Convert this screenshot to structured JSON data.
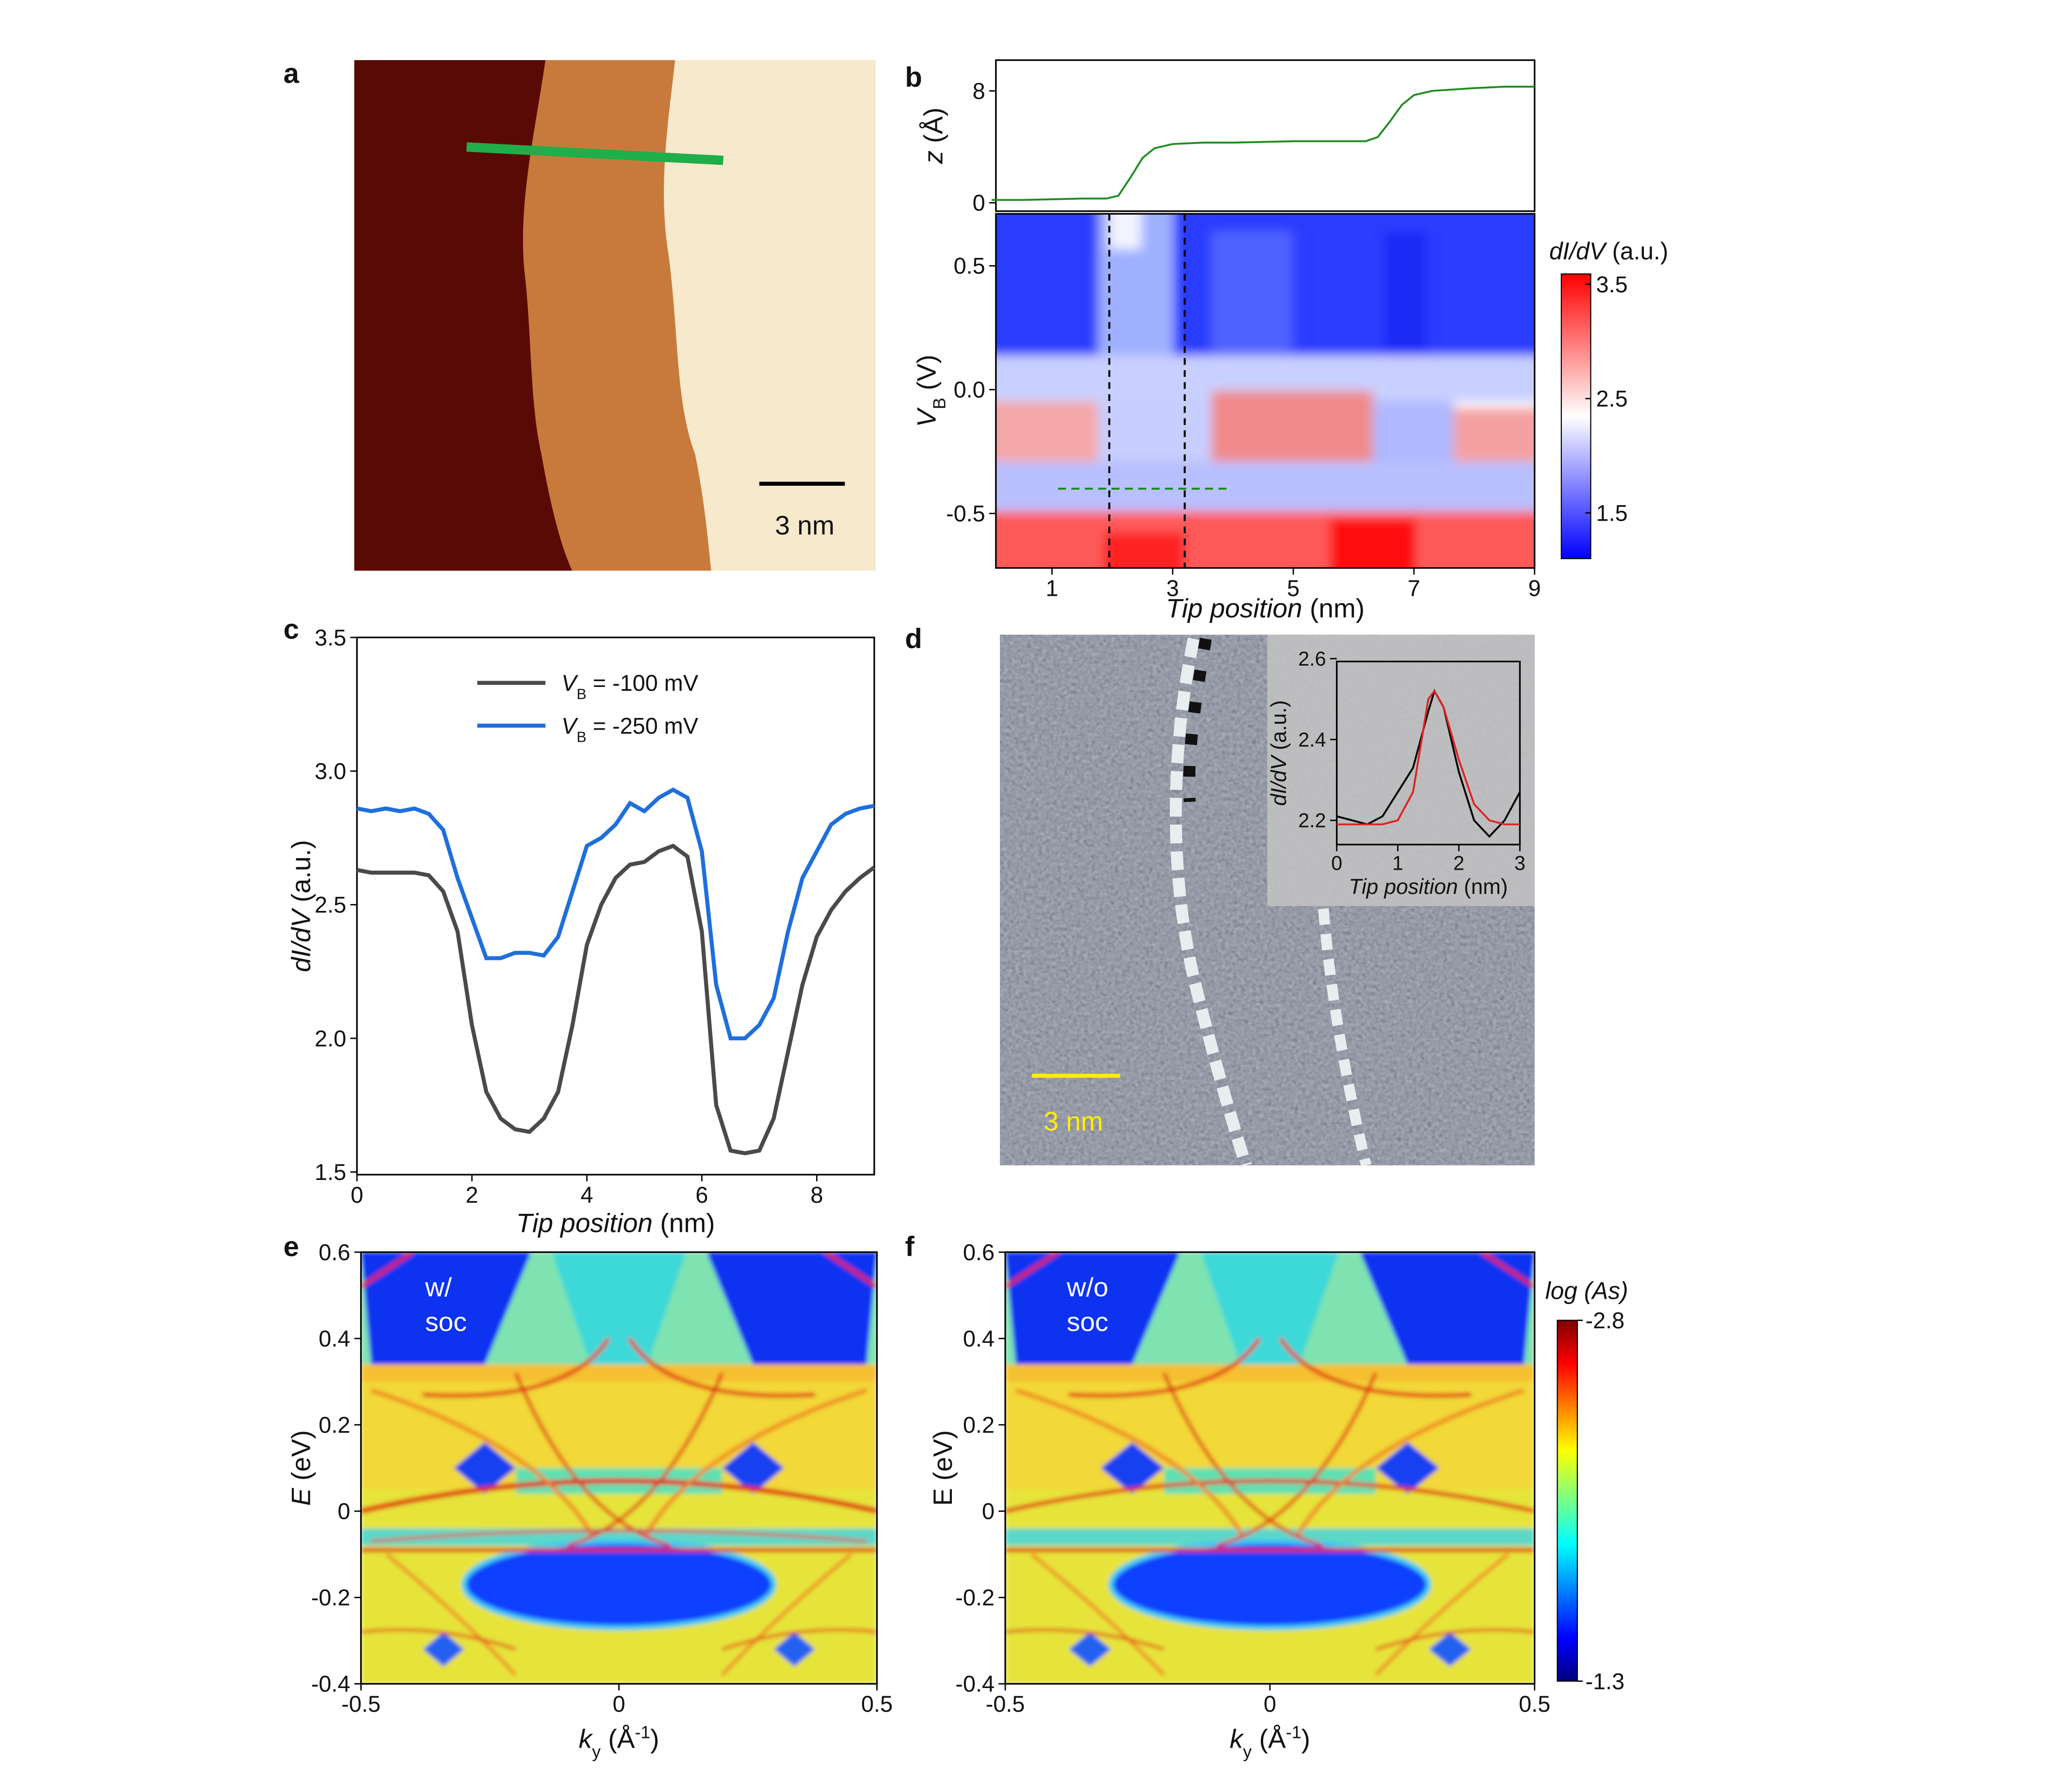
{
  "panel_labels": [
    "a",
    "b",
    "c",
    "d",
    "e",
    "f"
  ],
  "a": {
    "scale_bar": "3 nm"
  },
  "b": {
    "profile": {
      "type": "line",
      "y_label": {
        "italic": "z",
        "text": " (Å)"
      },
      "x": [
        0,
        0.5,
        1,
        1.5,
        1.9,
        2.1,
        2.3,
        2.5,
        2.7,
        3,
        3.5,
        4,
        5,
        6,
        6.2,
        6.4,
        6.6,
        6.8,
        7,
        7.3,
        8,
        8.5,
        9
      ],
      "values": [
        0.2,
        0.2,
        0.25,
        0.3,
        0.3,
        0.5,
        1.8,
        3.2,
        3.9,
        4.2,
        4.3,
        4.3,
        4.4,
        4.4,
        4.4,
        4.7,
        5.8,
        7.0,
        7.7,
        8.0,
        8.2,
        8.3,
        8.3
      ],
      "color": "#1e8c1e",
      "xlim": [
        0.07,
        9
      ],
      "ylim": [
        -0.6,
        10.2
      ],
      "yticks": [
        0,
        8
      ]
    },
    "map": {
      "type": "heatmap",
      "x_label": {
        "italic": "Tip position",
        "text": " (nm)"
      },
      "y_label": {
        "italic": "V",
        "sub": "B",
        "text": " (V)"
      },
      "xlim": [
        0.07,
        9
      ],
      "ylim": [
        -0.72,
        0.71
      ],
      "xticks": [
        1,
        3,
        5,
        7,
        9
      ],
      "yticks": [
        -0.5,
        {
          "value": 0,
          "label": "0.0"
        },
        0.5
      ],
      "vlines": [
        1.95,
        3.2
      ],
      "hline": {
        "y": -0.4,
        "x": [
          1.1,
          3.9
        ]
      },
      "colorbar": {
        "title": {
          "italic": "dI/dV",
          "text": " (a.u.)"
        },
        "clim": [
          1.1,
          3.59
        ],
        "ticks": [
          1.5,
          2.5,
          3.5
        ]
      }
    }
  },
  "c": {
    "type": "line",
    "x_label": {
      "italic": "Tip position",
      "text": " (nm)"
    },
    "y_label": {
      "italic": "dI/dV",
      "text": " (a.u.)"
    },
    "x": [
      0,
      0.25,
      0.5,
      0.75,
      1,
      1.25,
      1.5,
      1.75,
      2,
      2.25,
      2.5,
      2.75,
      3,
      3.25,
      3.5,
      3.75,
      4,
      4.25,
      4.5,
      4.75,
      5,
      5.25,
      5.5,
      5.75,
      6,
      6.25,
      6.5,
      6.75,
      7,
      7.25,
      7.5,
      7.75,
      8,
      8.25,
      8.5,
      8.75,
      9
    ],
    "series": [
      {
        "name": {
          "italic": "V",
          "sub": "B",
          "text": " = -100 mV"
        },
        "color": "#4a4a4a",
        "values": [
          2.63,
          2.62,
          2.62,
          2.62,
          2.62,
          2.61,
          2.55,
          2.4,
          2.05,
          1.8,
          1.7,
          1.66,
          1.65,
          1.7,
          1.8,
          2.05,
          2.35,
          2.5,
          2.6,
          2.65,
          2.66,
          2.7,
          2.72,
          2.68,
          2.4,
          1.75,
          1.58,
          1.57,
          1.58,
          1.7,
          1.95,
          2.2,
          2.38,
          2.48,
          2.55,
          2.6,
          2.64
        ]
      },
      {
        "name": {
          "italic": "V",
          "sub": "B",
          "text": " = -250 mV"
        },
        "color": "#1f6fdc",
        "values": [
          2.86,
          2.85,
          2.86,
          2.85,
          2.86,
          2.84,
          2.78,
          2.6,
          2.45,
          2.3,
          2.3,
          2.32,
          2.32,
          2.31,
          2.38,
          2.55,
          2.72,
          2.75,
          2.8,
          2.88,
          2.85,
          2.9,
          2.93,
          2.9,
          2.7,
          2.2,
          2.0,
          2.0,
          2.05,
          2.15,
          2.4,
          2.6,
          2.7,
          2.8,
          2.84,
          2.86,
          2.87
        ]
      }
    ],
    "xlim": [
      0,
      9
    ],
    "ylim": [
      1.49,
      3.5
    ],
    "xticks": [
      0,
      2,
      4,
      6,
      8
    ],
    "yticks": [
      1.5,
      {
        "value": 2,
        "label": "2.0"
      },
      2.5,
      {
        "value": 3,
        "label": "3.0"
      },
      3.5
    ]
  },
  "d": {
    "scale_bar": "3 nm",
    "inset": {
      "type": "line",
      "x_label": {
        "italic": "Tip position",
        "text": " (nm)"
      },
      "y_label": {
        "italic": "dI/dV",
        "text": " (a.u.)"
      },
      "x": [
        0,
        0.25,
        0.5,
        0.75,
        1,
        1.25,
        1.5,
        1.6,
        1.75,
        2,
        2.25,
        2.5,
        2.75,
        3
      ],
      "series": [
        {
          "color": "#000000",
          "values": [
            2.21,
            2.2,
            2.19,
            2.21,
            2.27,
            2.33,
            2.47,
            2.52,
            2.48,
            2.32,
            2.2,
            2.16,
            2.2,
            2.27
          ]
        },
        {
          "color": "#e02020",
          "values": [
            2.19,
            2.19,
            2.19,
            2.19,
            2.2,
            2.27,
            2.5,
            2.52,
            2.48,
            2.35,
            2.24,
            2.2,
            2.19,
            2.19
          ]
        }
      ],
      "xlim": [
        0,
        3
      ],
      "ylim": [
        2.14,
        2.593
      ],
      "xticks": [
        0,
        1,
        2,
        3
      ],
      "yticks": [
        2.2,
        2.4,
        2.6
      ]
    }
  },
  "e": {
    "type": "heatmap",
    "tag": [
      "w/",
      "soc"
    ],
    "x_label": {
      "italic": "k",
      "sub": "y",
      "text": " (Å",
      "sup": "-1",
      "end": ")"
    },
    "y_label": {
      "italic": "E",
      "text": " (eV)"
    },
    "xlim": [
      -0.5,
      0.5
    ],
    "ylim": [
      -0.4,
      0.6
    ],
    "xticks": [
      -0.5,
      0,
      0.5
    ],
    "yticks": [
      -0.4,
      -0.2,
      0,
      0.2,
      0.4,
      0.6
    ]
  },
  "f": {
    "type": "heatmap",
    "tag": [
      "w/o",
      "soc"
    ],
    "x_label": {
      "italic": "k",
      "sub": "y",
      "text": " (Å",
      "sup": "-1",
      "end": ")"
    },
    "y_label": {
      "text": "E (eV)"
    },
    "xlim": [
      -0.5,
      0.5
    ],
    "ylim": [
      -0.4,
      0.6
    ],
    "xticks": [
      -0.5,
      0,
      0.5
    ],
    "yticks": [
      -0.4,
      -0.2,
      0,
      0.2,
      0.4,
      0.6
    ],
    "colorbar": {
      "title": {
        "italic": "log (As)"
      },
      "clim": [
        -1.3,
        -2.8
      ],
      "ticks": [
        -2.8,
        -1.3
      ]
    }
  }
}
